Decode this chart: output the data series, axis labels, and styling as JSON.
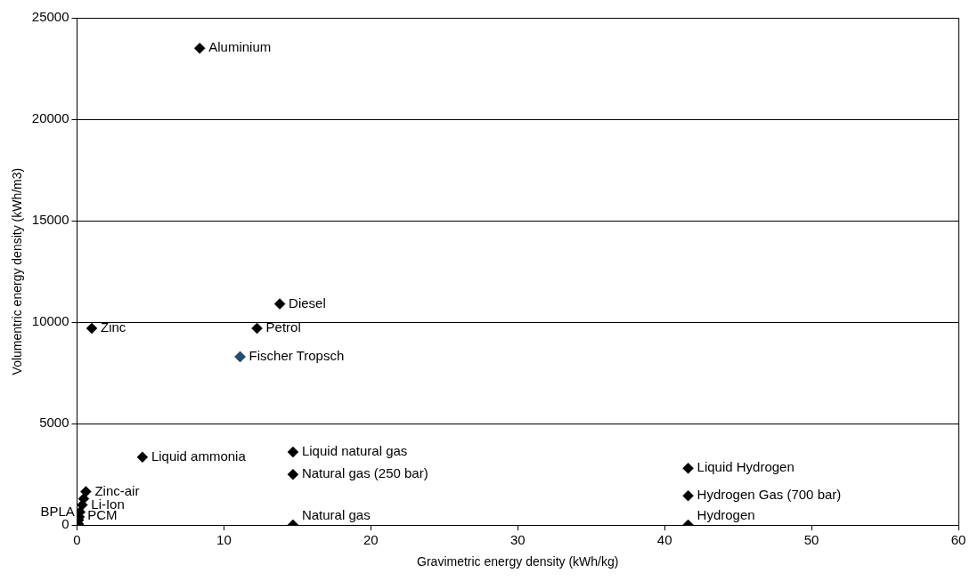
{
  "chart_data": {
    "type": "scatter",
    "xlabel": "Gravimetric energy density (kWh/kg)",
    "ylabel": "Volumentric energy density (kWh/m3)",
    "x": [
      8.35,
      13.8,
      1.0,
      12.25,
      11.1,
      4.45,
      14.7,
      14.7,
      14.7,
      41.6,
      41.6,
      41.6,
      0.6,
      0.45,
      0.35,
      0.2,
      0.15,
      0.1,
      0.1
    ],
    "values": [
      23500,
      10900,
      9700,
      9700,
      8300,
      3350,
      3600,
      2500,
      10,
      2800,
      1450,
      10,
      1650,
      1300,
      1000,
      650,
      400,
      250,
      50
    ],
    "colors": [
      "#000000",
      "#000000",
      "#000000",
      "#000000",
      "#1f4e79",
      "#000000",
      "#000000",
      "#000000",
      "#000000",
      "#000000",
      "#000000",
      "#000000",
      "#000000",
      "#000000",
      "#000000",
      "#000000",
      "#000000",
      "#000000",
      "#000000"
    ],
    "marker": "diamond",
    "xlim": [
      0,
      60
    ],
    "ylim": [
      0,
      25000
    ],
    "xticks": [
      0,
      10,
      20,
      30,
      40,
      50,
      60
    ],
    "yticks": [
      0,
      5000,
      10000,
      15000,
      20000,
      25000
    ],
    "grid": "y",
    "legend": false,
    "annotations": [
      {
        "text": "Aluminium",
        "x": 8.35,
        "y": 23500
      },
      {
        "text": "Diesel",
        "x": 13.8,
        "y": 10900
      },
      {
        "text": "Zinc",
        "x": 1.0,
        "y": 9700
      },
      {
        "text": "Petrol",
        "x": 12.25,
        "y": 9700
      },
      {
        "text": "Fischer Tropsch",
        "x": 11.1,
        "y": 8300
      },
      {
        "text": "Liquid ammonia",
        "x": 4.45,
        "y": 3350
      },
      {
        "text": "Liquid natural gas",
        "x": 14.7,
        "y": 3600
      },
      {
        "text": "Natural gas (250 bar)",
        "x": 14.7,
        "y": 2500
      },
      {
        "text": "Natural gas",
        "x": 14.7,
        "y": 10
      },
      {
        "text": "Liquid Hydrogen",
        "x": 41.6,
        "y": 2800
      },
      {
        "text": "Hydrogen Gas (700 bar)",
        "x": 41.6,
        "y": 1450
      },
      {
        "text": "Hydrogen",
        "x": 41.6,
        "y": 10
      },
      {
        "text": "Zinc-air",
        "x": 0.6,
        "y": 1650
      },
      {
        "text": "Li-Ion",
        "x": 0.35,
        "y": 1000
      },
      {
        "text": "BPLA",
        "x": 0.2,
        "y": 650
      },
      {
        "text": "PCM",
        "x": 0.1,
        "y": 250
      }
    ]
  }
}
